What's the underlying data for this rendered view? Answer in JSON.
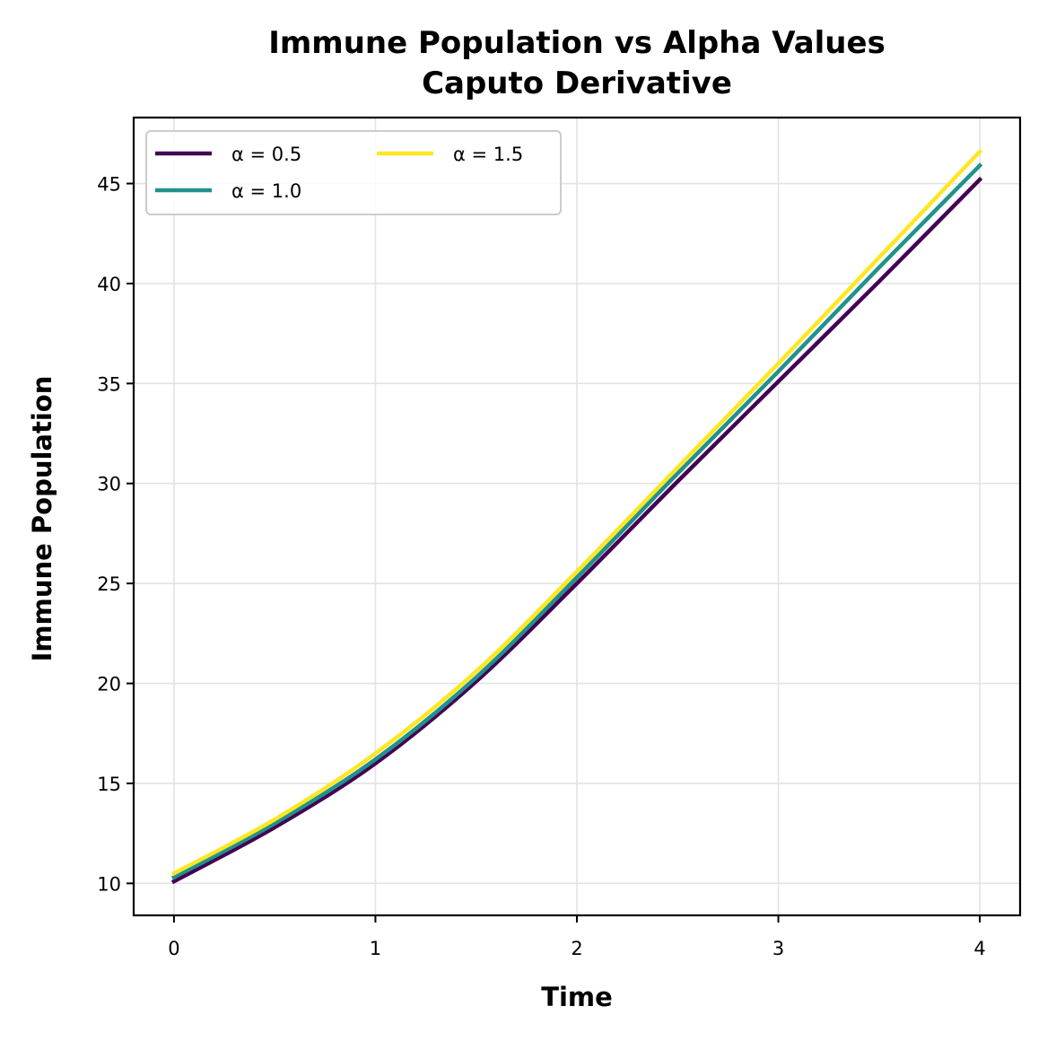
{
  "chart_data": {
    "type": "line",
    "title": "Immune Population vs Alpha Values",
    "subtitle": "Caputo Derivative",
    "xlabel": "Time",
    "ylabel": "Immune Population",
    "xlim": [
      -0.2,
      4.2
    ],
    "ylim": [
      8.4,
      48.3
    ],
    "xticks": [
      0,
      1,
      2,
      3,
      4
    ],
    "xtick_labels": [
      "0",
      "1",
      "2",
      "3",
      "4"
    ],
    "yticks": [
      10,
      15,
      20,
      25,
      30,
      35,
      40,
      45
    ],
    "ytick_labels": [
      "10",
      "15",
      "20",
      "25",
      "30",
      "35",
      "40",
      "45"
    ],
    "grid": true,
    "legend_position": "top-left",
    "legend_columns": 2,
    "x": [
      0,
      0.5,
      1.0,
      1.5,
      2.0,
      2.5,
      3.0,
      3.5,
      4.0
    ],
    "series": [
      {
        "name": "α = 0.5",
        "color": "#440154",
        "values": [
          10.1,
          12.8,
          16.0,
          20.1,
          25.0,
          30.1,
          35.1,
          40.1,
          45.2
        ]
      },
      {
        "name": "α = 1.0",
        "color": "#21918c",
        "values": [
          10.3,
          13.0,
          16.2,
          20.3,
          25.3,
          30.5,
          35.6,
          40.8,
          45.9
        ]
      },
      {
        "name": "α = 1.5",
        "color": "#fde725",
        "values": [
          10.5,
          13.2,
          16.5,
          20.6,
          25.6,
          30.8,
          36.0,
          41.3,
          46.6
        ]
      }
    ]
  }
}
